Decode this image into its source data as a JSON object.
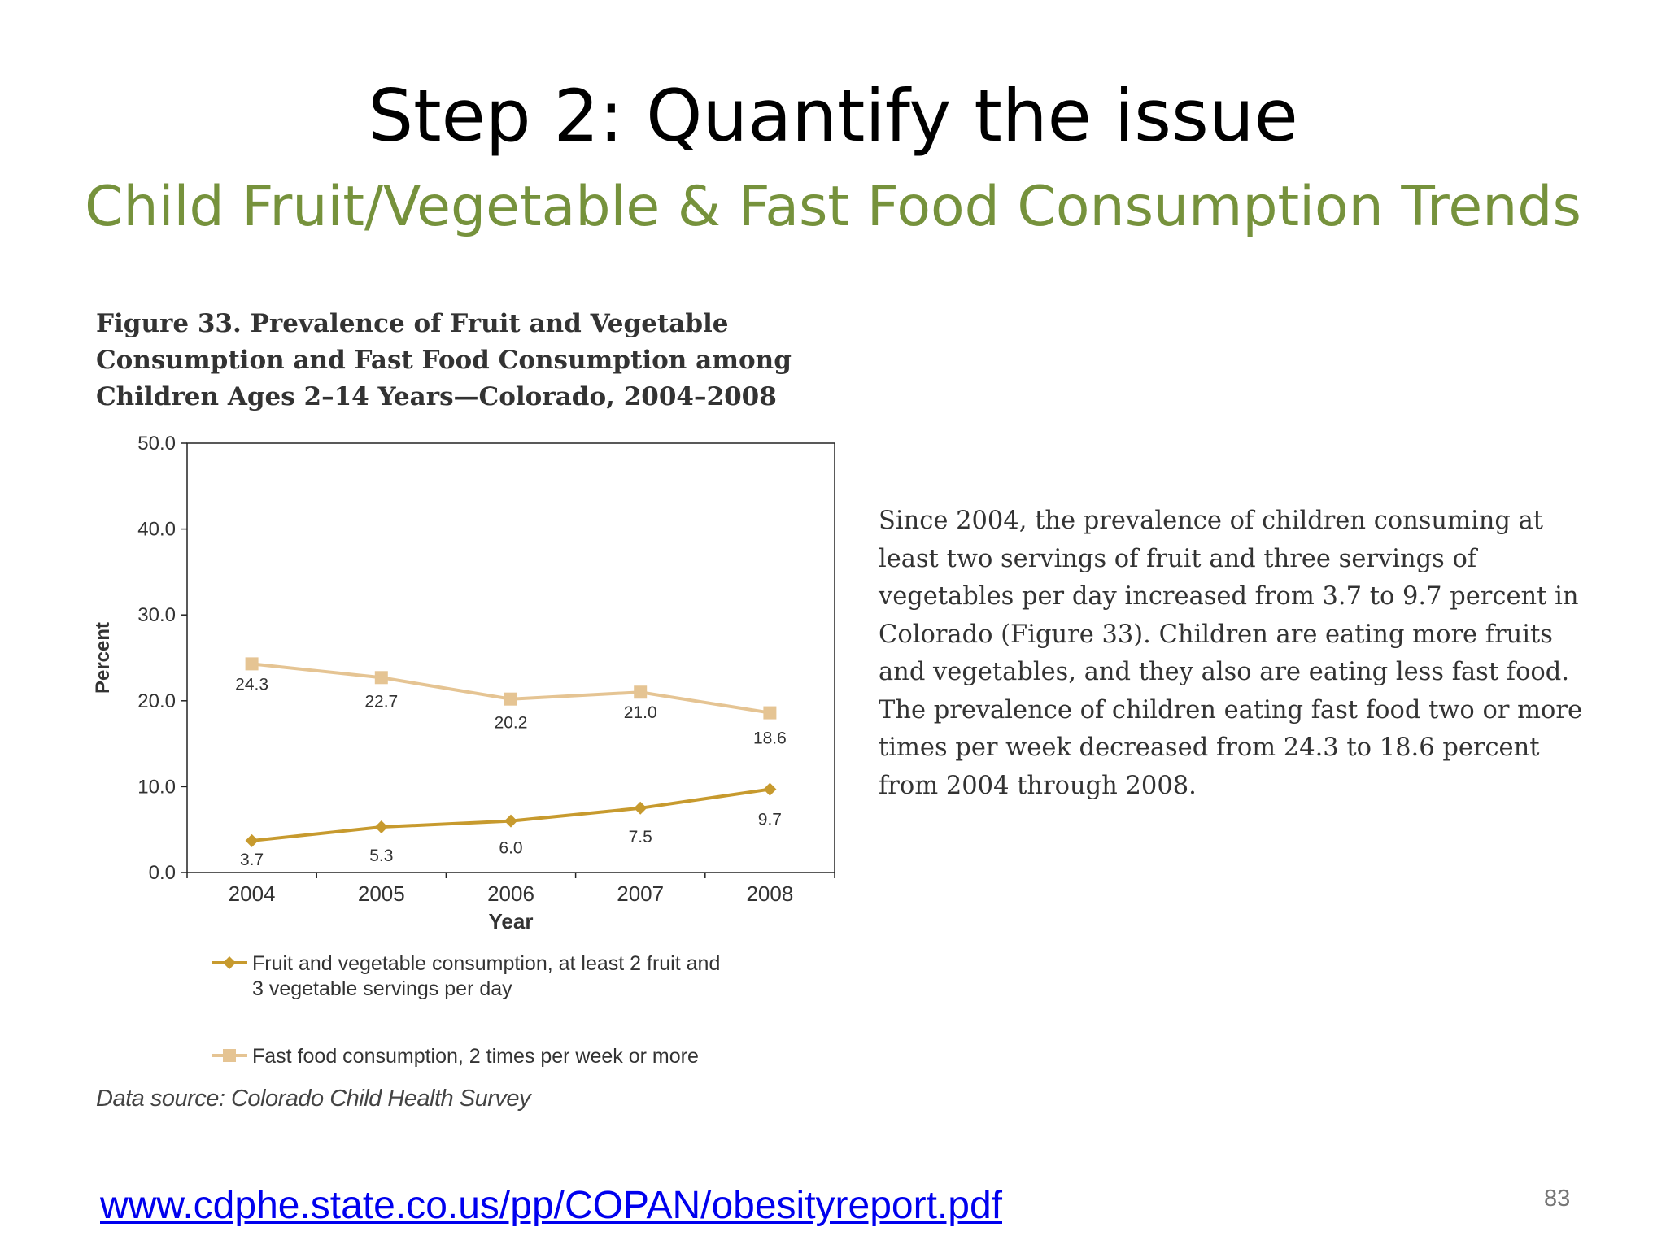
{
  "slide": {
    "title": "Step 2: Quantify the issue",
    "subtitle": "Child Fruit/Vegetable & Fast Food Consumption Trends",
    "figure_caption": [
      "Figure 33. Prevalence of Fruit and Vegetable",
      "Consumption and Fast Food Consumption among",
      "Children Ages 2–14 Years—Colorado, 2004–2008"
    ],
    "side_text": "Since 2004, the prevalence of children consuming at least two servings of fruit and three servings of vegetables per day increased from 3.7 to 9.7 percent in Colorado (Figure 33). Children are eating more fruits and vegetables, and they also are eating less fast food. The prevalence of children eating fast food two or more times per week decreased from 24.3 to 18.6 percent from 2004 through 2008.",
    "data_source": "Data source: Colorado Child Health Survey",
    "url": "www.cdphe.state.co.us/pp/COPAN/obesityreport.pdf",
    "page_number": "83"
  },
  "chart_data": {
    "type": "line",
    "x": [
      "2004",
      "2005",
      "2006",
      "2007",
      "2008"
    ],
    "xlabel": "Year",
    "ylabel": "Percent",
    "ylim": [
      0,
      50
    ],
    "yticks": [
      "0.0",
      "10.0",
      "20.0",
      "30.0",
      "40.0",
      "50.0"
    ],
    "grid": false,
    "legend_position": "bottom",
    "series": [
      {
        "name": "Fruit and vegetable consumption, at least 2 fruit and 3 vegetable servings per day",
        "legend_lines": [
          "Fruit and vegetable consumption, at least 2 fruit and",
          "3 vegetable servings per day"
        ],
        "values": [
          3.7,
          5.3,
          6.0,
          7.5,
          9.7
        ],
        "labels": [
          "3.7",
          "5.3",
          "6.0",
          "7.5",
          "9.7"
        ],
        "color": "#c79a2e",
        "marker": "diamond"
      },
      {
        "name": "Fast food consumption, 2 times per week or more",
        "legend_lines": [
          "Fast food consumption, 2 times per week or more"
        ],
        "values": [
          24.3,
          22.7,
          20.2,
          21.0,
          18.6
        ],
        "labels": [
          "24.3",
          "22.7",
          "20.2",
          "21.0",
          "18.6"
        ],
        "color": "#e5c493",
        "marker": "square"
      }
    ]
  }
}
